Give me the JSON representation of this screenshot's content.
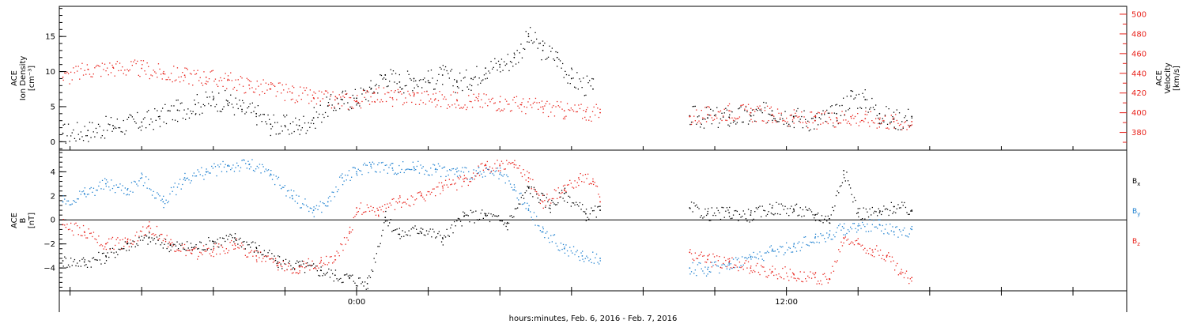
{
  "figure": {
    "time_axis_title": "hours:minutes, Feb.  6, 2016 - Feb.  7, 2016"
  },
  "chart_data": [
    {
      "type": "scatter",
      "title": "",
      "ylabel": [
        "ACE",
        "Ion Density",
        "[cm⁻³]"
      ],
      "ylabel_right": [
        "ACE",
        "Velocity",
        "[km/s]"
      ],
      "xlabel": "hours:minutes, Feb.  6, 2016 - Feb.  7, 2016",
      "x_unit": "hours relative to Feb 7 00:00",
      "xlim": [
        -8.3,
        21.5
      ],
      "x_tick_labels": [
        {
          "x": 0,
          "label": "0:00"
        },
        {
          "x": 12,
          "label": "12:00"
        }
      ],
      "ylim": [
        -1.2,
        19.3
      ],
      "y_ticks": [
        0,
        5,
        10,
        15
      ],
      "ylim_right": [
        362,
        508
      ],
      "y_ticks_right": [
        380,
        400,
        420,
        440,
        460,
        480,
        500
      ],
      "grid": false,
      "series": [
        {
          "name": "",
          "axis": "left",
          "color": "#000000",
          "points": [
            [
              -8.2,
              1.2
            ],
            [
              -7.5,
              1.6
            ],
            [
              -6.8,
              2.3
            ],
            [
              -6.0,
              2.8
            ],
            [
              -5.5,
              3.6
            ],
            [
              -5.0,
              4.5
            ],
            [
              -4.5,
              5.3
            ],
            [
              -4.0,
              6.0
            ],
            [
              -3.6,
              5.8
            ],
            [
              -3.2,
              4.6
            ],
            [
              -2.8,
              4.0
            ],
            [
              -2.4,
              2.5
            ],
            [
              -2.0,
              2.3
            ],
            [
              -1.6,
              2.3
            ],
            [
              -1.2,
              3.4
            ],
            [
              -0.8,
              5.1
            ],
            [
              -0.4,
              6.0
            ],
            [
              0.0,
              6.2
            ],
            [
              0.4,
              7.5
            ],
            [
              0.8,
              9.5
            ],
            [
              1.2,
              8.5
            ],
            [
              1.6,
              9.0
            ],
            [
              2.0,
              8.7
            ],
            [
              2.4,
              9.5
            ],
            [
              2.8,
              8.5
            ],
            [
              3.2,
              9.0
            ],
            [
              3.6,
              10.5
            ],
            [
              4.0,
              11.0
            ],
            [
              4.4,
              12.0
            ],
            [
              4.8,
              15.0
            ],
            [
              5.2,
              13.0
            ],
            [
              5.6,
              12.0
            ],
            [
              6.0,
              9.0
            ],
            [
              6.6,
              7.5
            ],
            [
              9.3,
              3.7
            ],
            [
              9.8,
              3.4
            ],
            [
              10.4,
              3.5
            ],
            [
              11.0,
              3.7
            ],
            [
              11.6,
              4.4
            ],
            [
              12.2,
              3.6
            ],
            [
              12.8,
              3.0
            ],
            [
              13.4,
              4.0
            ],
            [
              13.8,
              6.5
            ],
            [
              14.2,
              6.0
            ],
            [
              14.6,
              4.0
            ],
            [
              15.0,
              3.2
            ],
            [
              15.5,
              3.6
            ]
          ]
        },
        {
          "name": "",
          "axis": "right",
          "color": "#e8211a",
          "points": [
            [
              -8.2,
              436
            ],
            [
              -7.5,
              444
            ],
            [
              -6.8,
              446
            ],
            [
              -6.0,
              445
            ],
            [
              -5.4,
              440
            ],
            [
              -4.8,
              438
            ],
            [
              -4.2,
              436
            ],
            [
              -3.6,
              433
            ],
            [
              -3.0,
              428
            ],
            [
              -2.4,
              424
            ],
            [
              -1.8,
              420
            ],
            [
              -1.2,
              415
            ],
            [
              -0.6,
              413
            ],
            [
              0.0,
              412
            ],
            [
              0.5,
              420
            ],
            [
              1.0,
              415
            ],
            [
              1.6,
              417
            ],
            [
              2.2,
              414
            ],
            [
              2.8,
              413
            ],
            [
              3.4,
              412
            ],
            [
              4.0,
              411
            ],
            [
              4.6,
              408
            ],
            [
              5.2,
              406
            ],
            [
              5.8,
              402
            ],
            [
              6.4,
              401
            ],
            [
              6.8,
              400
            ],
            [
              9.3,
              396
            ],
            [
              9.8,
              398
            ],
            [
              10.4,
              402
            ],
            [
              11.0,
              400
            ],
            [
              11.6,
              398
            ],
            [
              12.2,
              395
            ],
            [
              12.8,
              392
            ],
            [
              13.4,
              395
            ],
            [
              13.8,
              396
            ],
            [
              14.2,
              394
            ],
            [
              14.6,
              393
            ],
            [
              15.0,
              391
            ],
            [
              15.5,
              391
            ]
          ]
        }
      ]
    },
    {
      "type": "scatter",
      "title": "",
      "ylabel": [
        "ACE",
        "B",
        "[nT]"
      ],
      "xlabel": "hours:minutes, Feb.  6, 2016 - Feb.  7, 2016",
      "x_unit": "hours relative to Feb 7 00:00",
      "xlim": [
        -8.3,
        21.5
      ],
      "x_tick_labels": [
        {
          "x": 0,
          "label": "0:00"
        },
        {
          "x": 12,
          "label": "12:00"
        }
      ],
      "ylim": [
        -5.9,
        5.8
      ],
      "y_ticks": [
        -4,
        -2,
        0,
        2,
        4
      ],
      "zero_line": true,
      "grid": false,
      "legend_position": "right",
      "series": [
        {
          "name": "B",
          "subscript": "x",
          "color": "#000000",
          "points": [
            [
              -8.2,
              -3.4
            ],
            [
              -7.6,
              -3.5
            ],
            [
              -7.0,
              -3.0
            ],
            [
              -6.4,
              -2.0
            ],
            [
              -5.8,
              -1.5
            ],
            [
              -5.2,
              -2.1
            ],
            [
              -4.6,
              -2.3
            ],
            [
              -4.0,
              -1.8
            ],
            [
              -3.4,
              -1.5
            ],
            [
              -2.8,
              -2.3
            ],
            [
              -2.2,
              -3.5
            ],
            [
              -1.6,
              -3.8
            ],
            [
              -1.0,
              -4.2
            ],
            [
              -0.6,
              -4.6
            ],
            [
              -0.2,
              -4.8
            ],
            [
              0.3,
              -5.3
            ],
            [
              0.8,
              0.2
            ],
            [
              1.2,
              -1.2
            ],
            [
              1.8,
              -0.7
            ],
            [
              2.4,
              -1.5
            ],
            [
              3.0,
              0.3
            ],
            [
              3.6,
              0.4
            ],
            [
              4.2,
              -0.3
            ],
            [
              4.8,
              2.7
            ],
            [
              5.4,
              1.2
            ],
            [
              5.8,
              2.2
            ],
            [
              6.4,
              0.5
            ],
            [
              6.8,
              0.8
            ],
            [
              9.3,
              1.0
            ],
            [
              9.8,
              0.5
            ],
            [
              10.4,
              0.6
            ],
            [
              11.0,
              0.4
            ],
            [
              11.6,
              1.0
            ],
            [
              12.2,
              0.9
            ],
            [
              12.8,
              0.4
            ],
            [
              13.2,
              0.1
            ],
            [
              13.6,
              4.1
            ],
            [
              14.0,
              0.6
            ],
            [
              14.6,
              0.6
            ],
            [
              15.0,
              1.1
            ],
            [
              15.5,
              0.8
            ]
          ]
        },
        {
          "name": "B",
          "subscript": "y",
          "color": "#1c7fcf",
          "points": [
            [
              -8.2,
              1.5
            ],
            [
              -7.6,
              2.2
            ],
            [
              -7.0,
              3.0
            ],
            [
              -6.4,
              2.5
            ],
            [
              -6.0,
              3.5
            ],
            [
              -5.4,
              1.5
            ],
            [
              -4.8,
              3.5
            ],
            [
              -4.2,
              4.0
            ],
            [
              -3.6,
              4.5
            ],
            [
              -3.0,
              4.6
            ],
            [
              -2.4,
              3.8
            ],
            [
              -1.8,
              2.0
            ],
            [
              -1.2,
              0.8
            ],
            [
              -0.8,
              1.5
            ],
            [
              -0.4,
              3.5
            ],
            [
              0.0,
              4.0
            ],
            [
              0.4,
              4.6
            ],
            [
              1.0,
              4.3
            ],
            [
              1.6,
              4.4
            ],
            [
              2.2,
              4.2
            ],
            [
              2.8,
              4.0
            ],
            [
              3.4,
              3.9
            ],
            [
              4.0,
              3.8
            ],
            [
              4.4,
              2.5
            ],
            [
              4.8,
              0.8
            ],
            [
              5.2,
              -1.0
            ],
            [
              5.8,
              -2.4
            ],
            [
              6.3,
              -3.0
            ],
            [
              6.8,
              -3.2
            ],
            [
              9.3,
              -4.0
            ],
            [
              9.8,
              -4.1
            ],
            [
              10.4,
              -3.6
            ],
            [
              11.0,
              -3.1
            ],
            [
              11.6,
              -2.6
            ],
            [
              12.2,
              -2.2
            ],
            [
              12.8,
              -1.5
            ],
            [
              13.2,
              -1.2
            ],
            [
              13.6,
              -0.7
            ],
            [
              14.0,
              -0.5
            ],
            [
              14.6,
              -0.4
            ],
            [
              15.0,
              -1.0
            ],
            [
              15.5,
              -0.8
            ]
          ]
        },
        {
          "name": "B",
          "subscript": "z",
          "color": "#e8211a",
          "points": [
            [
              -8.2,
              -0.4
            ],
            [
              -7.6,
              -1.0
            ],
            [
              -7.0,
              -2.0
            ],
            [
              -6.4,
              -1.8
            ],
            [
              -5.8,
              -0.5
            ],
            [
              -5.2,
              -2.0
            ],
            [
              -4.6,
              -2.8
            ],
            [
              -4.0,
              -2.5
            ],
            [
              -3.4,
              -2.0
            ],
            [
              -2.8,
              -3.0
            ],
            [
              -2.2,
              -3.8
            ],
            [
              -1.6,
              -3.9
            ],
            [
              -1.0,
              -3.5
            ],
            [
              -0.6,
              -3.0
            ],
            [
              -0.2,
              -1.0
            ],
            [
              0.0,
              1.0
            ],
            [
              0.6,
              0.8
            ],
            [
              1.2,
              1.5
            ],
            [
              1.8,
              2.0
            ],
            [
              2.4,
              2.8
            ],
            [
              3.0,
              3.2
            ],
            [
              3.6,
              4.6
            ],
            [
              4.0,
              4.5
            ],
            [
              4.4,
              4.6
            ],
            [
              4.8,
              3.5
            ],
            [
              5.2,
              1.5
            ],
            [
              5.8,
              2.5
            ],
            [
              6.2,
              3.5
            ],
            [
              6.6,
              3.2
            ],
            [
              6.8,
              1.5
            ],
            [
              9.3,
              -2.7
            ],
            [
              9.8,
              -3.3
            ],
            [
              10.4,
              -3.5
            ],
            [
              11.0,
              -4.0
            ],
            [
              11.6,
              -4.3
            ],
            [
              12.2,
              -4.5
            ],
            [
              12.8,
              -4.8
            ],
            [
              13.2,
              -4.9
            ],
            [
              13.6,
              -1.5
            ],
            [
              14.0,
              -2.0
            ],
            [
              14.4,
              -2.5
            ],
            [
              14.8,
              -3.0
            ],
            [
              15.2,
              -4.5
            ],
            [
              15.5,
              -4.8
            ]
          ]
        }
      ]
    }
  ]
}
